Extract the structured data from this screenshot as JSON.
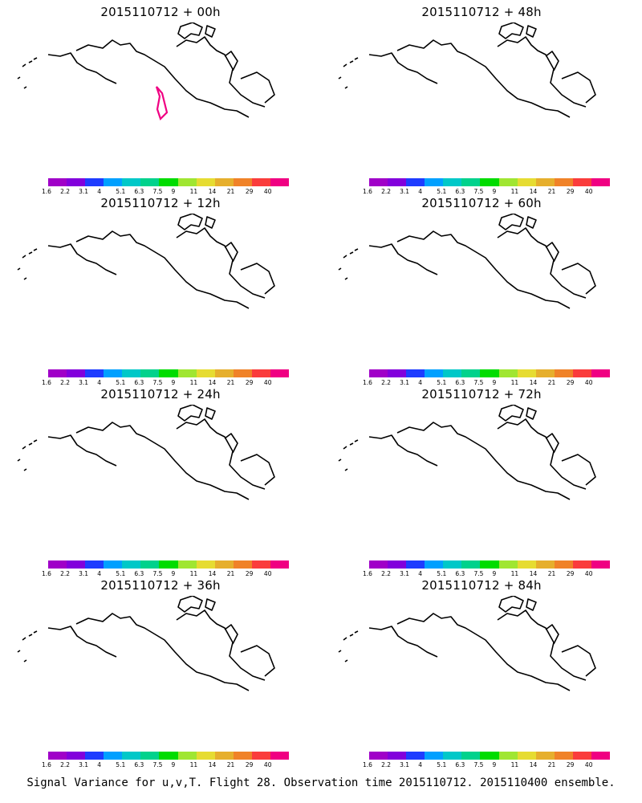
{
  "caption": "Signal Variance for u,v,T. Flight 28. Observation time 2015110712. 2015110400 ensemble.",
  "colorbar": {
    "colors": [
      "#a000c8",
      "#8200dc",
      "#1e3cff",
      "#00a0ff",
      "#00c8c8",
      "#00d28c",
      "#00dc00",
      "#a0e632",
      "#e6dc32",
      "#e6af2d",
      "#f08228",
      "#fa3c3c",
      "#f00082"
    ],
    "labels": [
      "1.6",
      "2.2",
      "3.1",
      "4",
      "5.1",
      "6.3",
      "7.5",
      "9",
      "11",
      "14",
      "21",
      "29",
      "40"
    ]
  },
  "panels": [
    {
      "title": "2015110712 + 00h",
      "intensity": 0,
      "flight_track": true
    },
    {
      "title": "2015110712 + 12h",
      "intensity": 1,
      "flight_track": false
    },
    {
      "title": "2015110712 + 24h",
      "intensity": 2,
      "flight_track": false
    },
    {
      "title": "2015110712 + 36h",
      "intensity": 3,
      "flight_track": false
    },
    {
      "title": "2015110712 + 48h",
      "intensity": 4,
      "flight_track": false
    },
    {
      "title": "2015110712 + 60h",
      "intensity": 5,
      "flight_track": false
    },
    {
      "title": "2015110712 + 72h",
      "intensity": 6,
      "flight_track": false
    },
    {
      "title": "2015110712 + 84h",
      "intensity": 7,
      "flight_track": false
    }
  ]
}
